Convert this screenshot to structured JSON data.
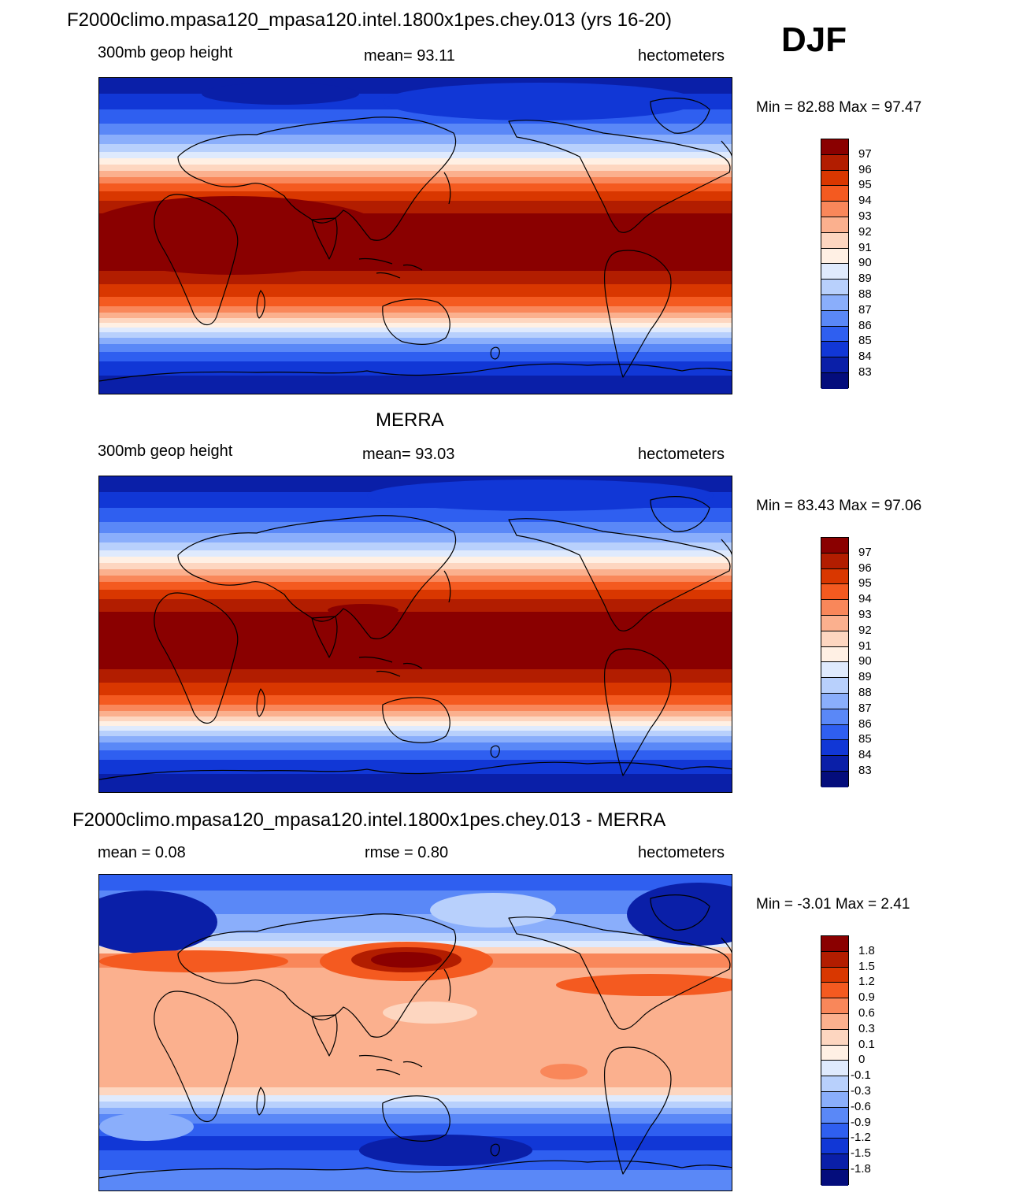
{
  "season": "DJF",
  "panels": [
    {
      "title": "F2000climo.mpasa120_mpasa120.intel.1800x1pes.chey.013 (yrs 16-20)",
      "left_label": "300mb geop height",
      "center_label": "mean=  93.11",
      "right_label": "hectometers",
      "minmax": "Min =  82.88 Max =  97.47",
      "field": "model",
      "colorbar": {
        "labels": [
          "97",
          "96",
          "95",
          "94",
          "93",
          "92",
          "91",
          "90",
          "89",
          "88",
          "87",
          "86",
          "85",
          "84",
          "83"
        ],
        "colors": [
          "#8a0000",
          "#b21d00",
          "#d93700",
          "#f45a20",
          "#f9875a",
          "#fbb08e",
          "#fdd6c0",
          "#fff0e4",
          "#dfeafd",
          "#b8d0fc",
          "#8aaefb",
          "#5a88f7",
          "#2f5ff0",
          "#1137d6",
          "#0a1fa8",
          "#040d7c"
        ]
      }
    },
    {
      "title": "MERRA",
      "left_label": "300mb geop height",
      "center_label": "mean=  93.03",
      "right_label": "hectometers",
      "minmax": "Min =  83.43 Max =  97.06",
      "field": "obs",
      "colorbar": {
        "labels": [
          "97",
          "96",
          "95",
          "94",
          "93",
          "92",
          "91",
          "90",
          "89",
          "88",
          "87",
          "86",
          "85",
          "84",
          "83"
        ],
        "colors": [
          "#8a0000",
          "#b21d00",
          "#d93700",
          "#f45a20",
          "#f9875a",
          "#fbb08e",
          "#fdd6c0",
          "#fff0e4",
          "#dfeafd",
          "#b8d0fc",
          "#8aaefb",
          "#5a88f7",
          "#2f5ff0",
          "#1137d6",
          "#0a1fa8",
          "#040d7c"
        ]
      }
    },
    {
      "title": "F2000climo.mpasa120_mpasa120.intel.1800x1pes.chey.013 - MERRA",
      "left_label": "mean =   0.08",
      "center_label": "rmse =   0.80",
      "right_label": "hectometers",
      "minmax": "Min =  -3.01 Max =   2.41",
      "field": "diff",
      "colorbar": {
        "labels": [
          "1.8",
          "1.5",
          "1.2",
          "0.9",
          "0.6",
          "0.3",
          "0.1",
          "0",
          "-0.1",
          "-0.3",
          "-0.6",
          "-0.9",
          "-1.2",
          "-1.5",
          "-1.8"
        ],
        "colors": [
          "#8a0000",
          "#b21d00",
          "#d93700",
          "#f45a20",
          "#f9875a",
          "#fbb08e",
          "#fdd6c0",
          "#fff0e4",
          "#dfeafd",
          "#b8d0fc",
          "#8aaefb",
          "#5a88f7",
          "#2f5ff0",
          "#1137d6",
          "#0a1fa8",
          "#040d7c"
        ]
      }
    }
  ]
}
